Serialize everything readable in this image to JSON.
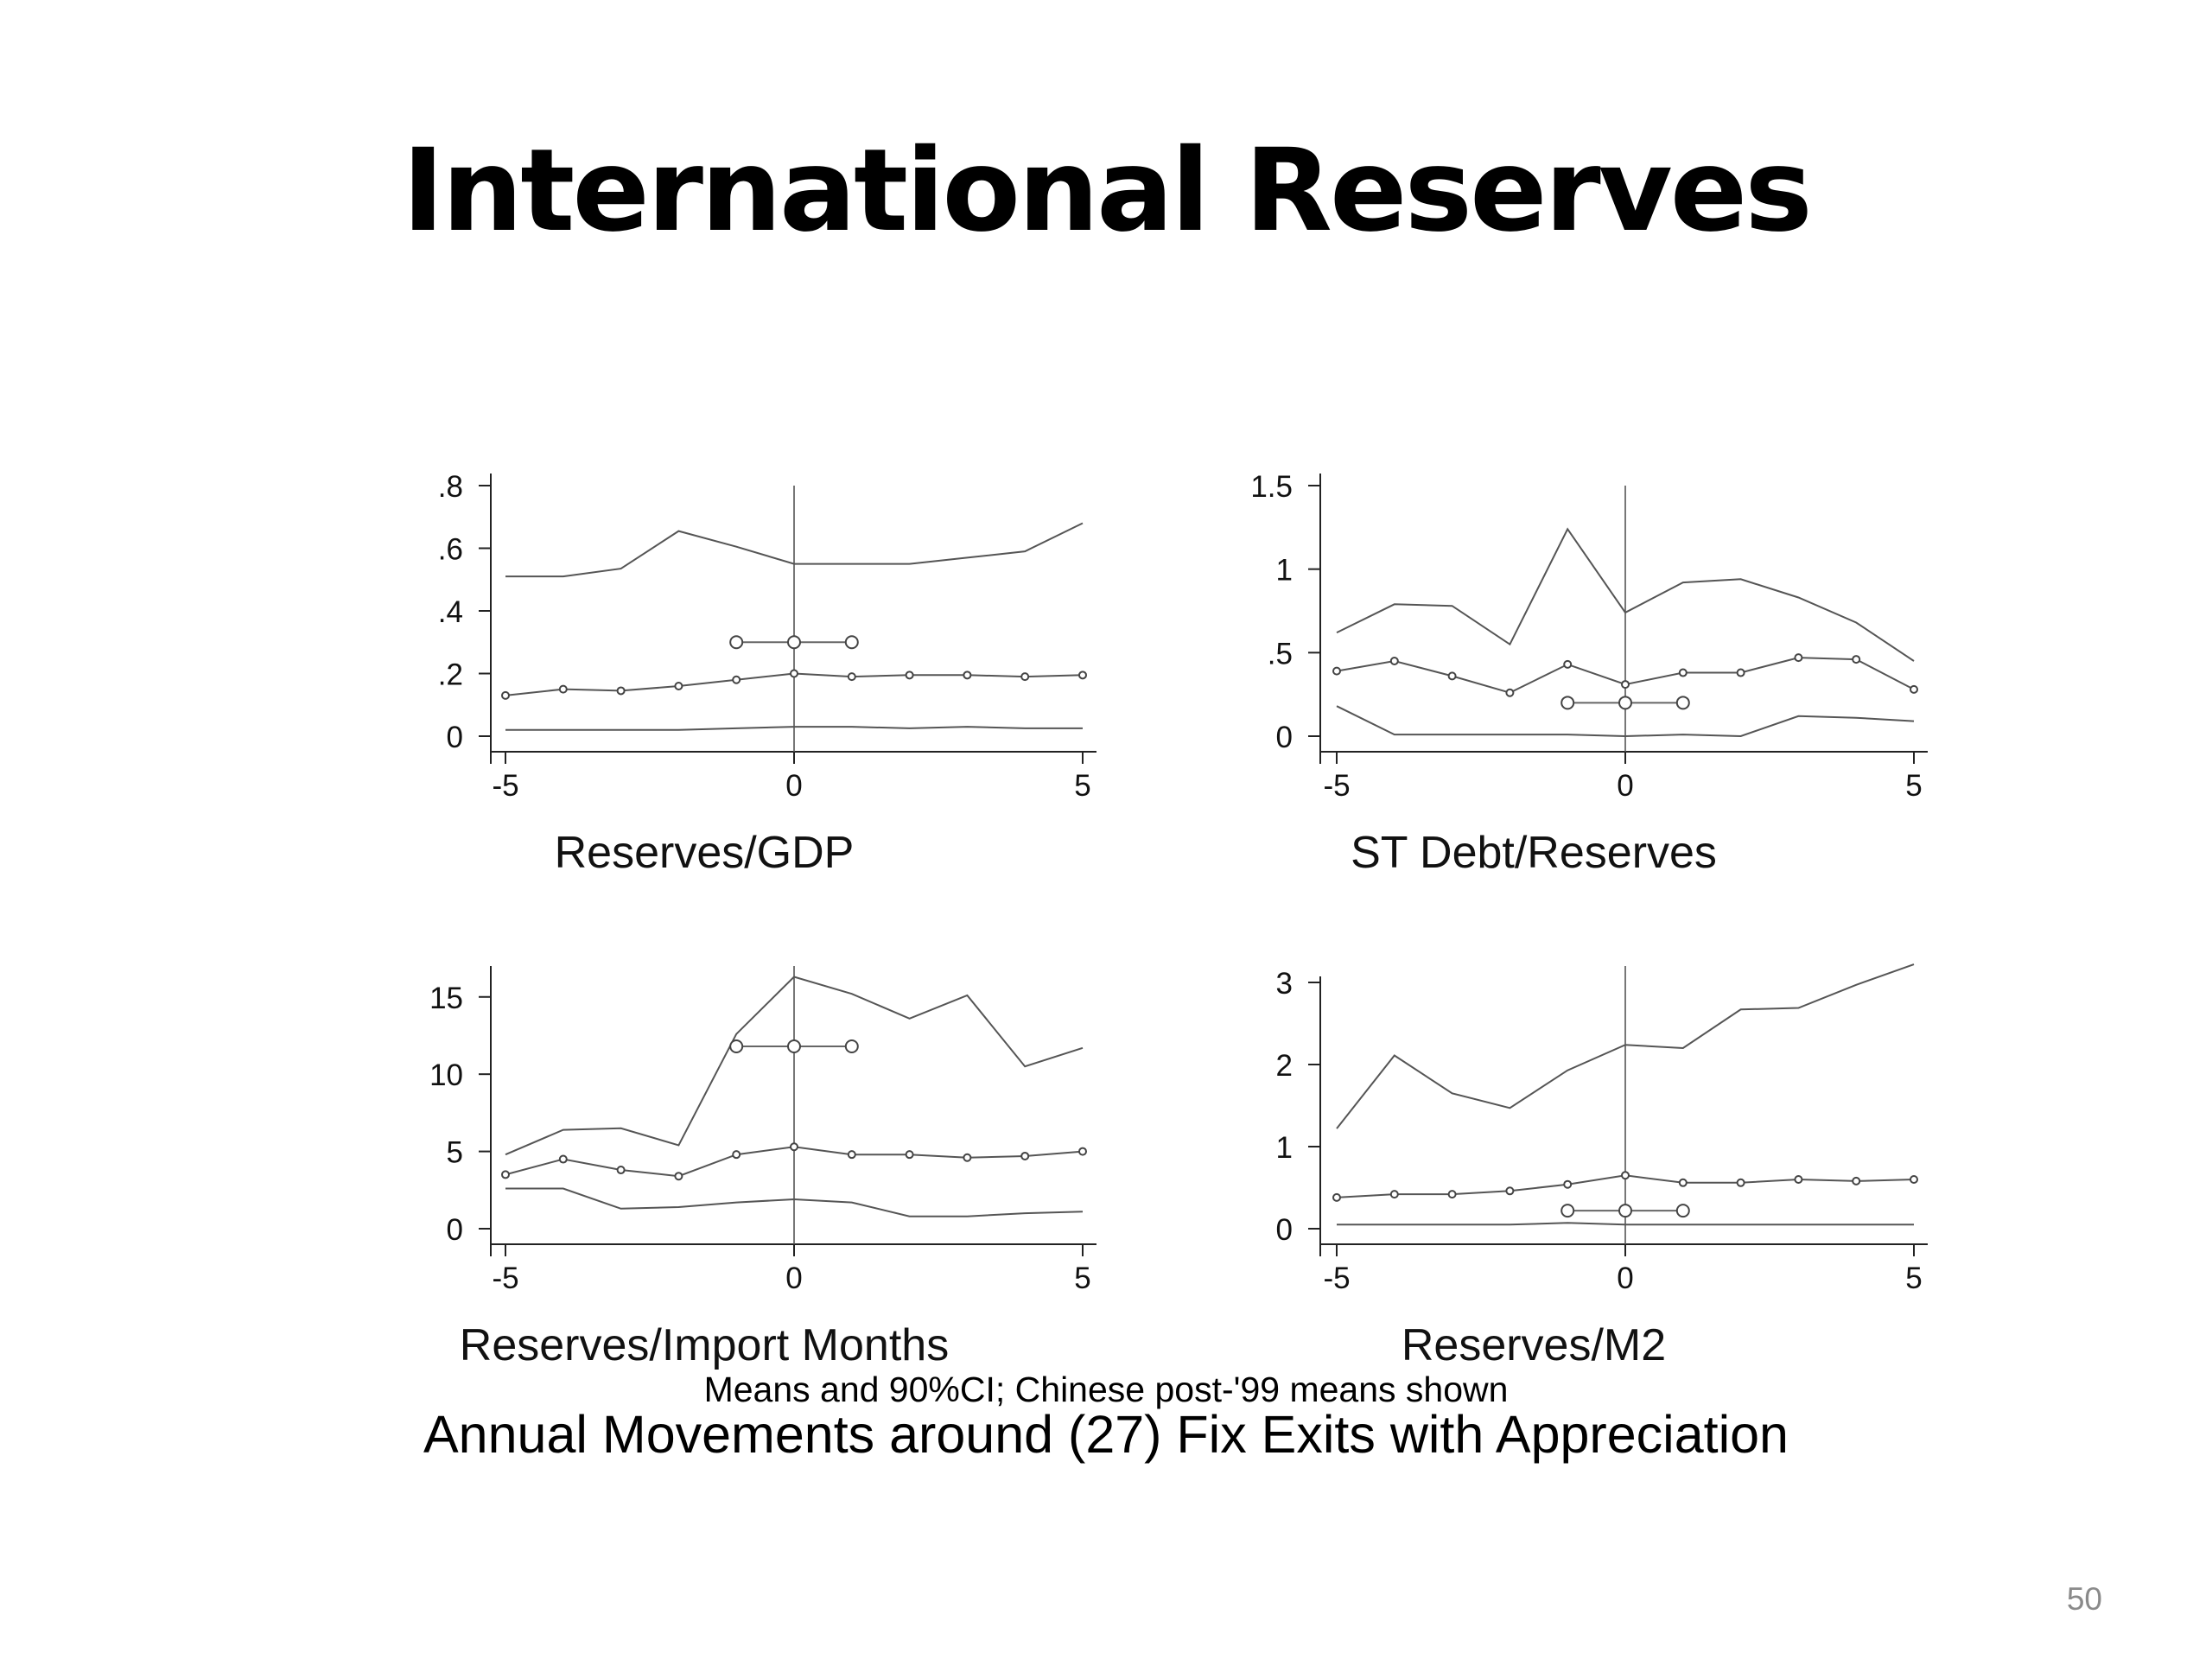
{
  "slide": {
    "title": "International Reserves",
    "footnote": "Means and 90%CI; Chinese post-'99 means shown",
    "caption": "Annual Movements around (27) Fix Exits with Appreciation",
    "page_number": "50"
  },
  "chart_data": [
    {
      "type": "line",
      "xlabel": "Reserves/GDP",
      "ylabel": "",
      "xlim": [
        -5,
        5
      ],
      "ylim": [
        0,
        0.8
      ],
      "xticks": [
        {
          "v": -5,
          "label": "-5"
        },
        {
          "v": 0,
          "label": "0"
        },
        {
          "v": 5,
          "label": "5"
        }
      ],
      "yticks": [
        {
          "v": 0,
          "label": "0"
        },
        {
          "v": 0.2,
          "label": ".2"
        },
        {
          "v": 0.4,
          "label": ".4"
        },
        {
          "v": 0.6,
          "label": ".6"
        },
        {
          "v": 0.8,
          "label": ".8"
        }
      ],
      "x": [
        -5,
        -4,
        -3,
        -2,
        -1,
        0,
        1,
        2,
        3,
        4,
        5
      ],
      "series": [
        {
          "role": "upper",
          "values": [
            0.51,
            0.51,
            0.535,
            0.655,
            0.605,
            0.55,
            0.55,
            0.55,
            0.57,
            0.59,
            0.68
          ]
        },
        {
          "role": "mean",
          "markers": true,
          "values": [
            0.13,
            0.15,
            0.145,
            0.16,
            0.18,
            0.2,
            0.19,
            0.195,
            0.195,
            0.19,
            0.195
          ]
        },
        {
          "role": "lower",
          "values": [
            0.02,
            0.02,
            0.02,
            0.02,
            0.025,
            0.03,
            0.03,
            0.025,
            0.03,
            0.025,
            0.025
          ]
        }
      ],
      "china_mean": {
        "x": [
          -1,
          0,
          1
        ],
        "y": 0.3
      },
      "grid": false,
      "event_line_x": 0
    },
    {
      "type": "line",
      "xlabel": "ST Debt/Reserves",
      "ylabel": "",
      "xlim": [
        -5,
        5
      ],
      "ylim": [
        0,
        1.5
      ],
      "xticks": [
        {
          "v": -5,
          "label": "-5"
        },
        {
          "v": 0,
          "label": "0"
        },
        {
          "v": 5,
          "label": "5"
        }
      ],
      "yticks": [
        {
          "v": 0,
          "label": "0"
        },
        {
          "v": 0.5,
          "label": ".5"
        },
        {
          "v": 1,
          "label": "1"
        },
        {
          "v": 1.5,
          "label": "1.5"
        }
      ],
      "x": [
        -5,
        -4,
        -3,
        -2,
        -1,
        0,
        1,
        2,
        3,
        4,
        5
      ],
      "series": [
        {
          "role": "upper",
          "values": [
            0.62,
            0.79,
            0.78,
            0.55,
            1.24,
            0.74,
            0.92,
            0.94,
            0.83,
            0.68,
            0.45
          ]
        },
        {
          "role": "mean",
          "markers": true,
          "values": [
            0.39,
            0.45,
            0.36,
            0.26,
            0.43,
            0.31,
            0.38,
            0.38,
            0.47,
            0.46,
            0.28
          ]
        },
        {
          "role": "lower",
          "values": [
            0.18,
            0.01,
            0.01,
            0.01,
            0.01,
            0.0,
            0.01,
            0.0,
            0.12,
            0.11,
            0.09
          ]
        }
      ],
      "china_mean": {
        "x": [
          -1,
          0,
          1
        ],
        "y": 0.2
      },
      "grid": false,
      "event_line_x": 0
    },
    {
      "type": "line",
      "xlabel": "Reserves/Import Months",
      "ylabel": "",
      "xlim": [
        -5,
        5
      ],
      "ylim": [
        0,
        17
      ],
      "xticks": [
        {
          "v": -5,
          "label": "-5"
        },
        {
          "v": 0,
          "label": "0"
        },
        {
          "v": 5,
          "label": "5"
        }
      ],
      "yticks": [
        {
          "v": 0,
          "label": "0"
        },
        {
          "v": 5,
          "label": "5"
        },
        {
          "v": 10,
          "label": "10"
        },
        {
          "v": 15,
          "label": "15"
        }
      ],
      "x": [
        -5,
        -4,
        -3,
        -2,
        -1,
        0,
        1,
        2,
        3,
        4,
        5
      ],
      "series": [
        {
          "role": "upper",
          "values": [
            4.8,
            6.4,
            6.5,
            5.4,
            12.6,
            16.3,
            15.2,
            13.6,
            15.1,
            10.5,
            11.7
          ]
        },
        {
          "role": "mean",
          "markers": true,
          "values": [
            3.5,
            4.5,
            3.8,
            3.4,
            4.8,
            5.3,
            4.8,
            4.8,
            4.6,
            4.7,
            5.0
          ]
        },
        {
          "role": "lower",
          "values": [
            2.6,
            2.6,
            1.3,
            1.4,
            1.7,
            1.9,
            1.7,
            0.8,
            0.8,
            1.0,
            1.1
          ]
        }
      ],
      "china_mean": {
        "x": [
          -1,
          0,
          1
        ],
        "y": 11.8
      },
      "grid": false,
      "event_line_x": 0
    },
    {
      "type": "line",
      "xlabel": "Reserves/M2",
      "ylabel": "",
      "xlim": [
        -5,
        5
      ],
      "ylim": [
        0,
        3.2
      ],
      "xticks": [
        {
          "v": -5,
          "label": "-5"
        },
        {
          "v": 0,
          "label": "0"
        },
        {
          "v": 5,
          "label": "5"
        }
      ],
      "yticks": [
        {
          "v": 0,
          "label": "0"
        },
        {
          "v": 1,
          "label": "1"
        },
        {
          "v": 2,
          "label": "2"
        },
        {
          "v": 3,
          "label": "3"
        }
      ],
      "x": [
        -5,
        -4,
        -3,
        -2,
        -1,
        0,
        1,
        2,
        3,
        4,
        5
      ],
      "series": [
        {
          "role": "upper",
          "values": [
            1.22,
            2.11,
            1.65,
            1.47,
            1.93,
            2.24,
            2.2,
            2.67,
            2.69,
            2.97,
            3.22
          ]
        },
        {
          "role": "mean",
          "markers": true,
          "values": [
            0.38,
            0.42,
            0.42,
            0.46,
            0.54,
            0.65,
            0.56,
            0.56,
            0.6,
            0.58,
            0.6
          ]
        },
        {
          "role": "lower",
          "values": [
            0.05,
            0.05,
            0.05,
            0.05,
            0.07,
            0.05,
            0.05,
            0.05,
            0.05,
            0.05,
            0.05
          ]
        }
      ],
      "china_mean": {
        "x": [
          -1,
          0,
          1
        ],
        "y": 0.22
      },
      "grid": false,
      "event_line_x": 0
    }
  ]
}
